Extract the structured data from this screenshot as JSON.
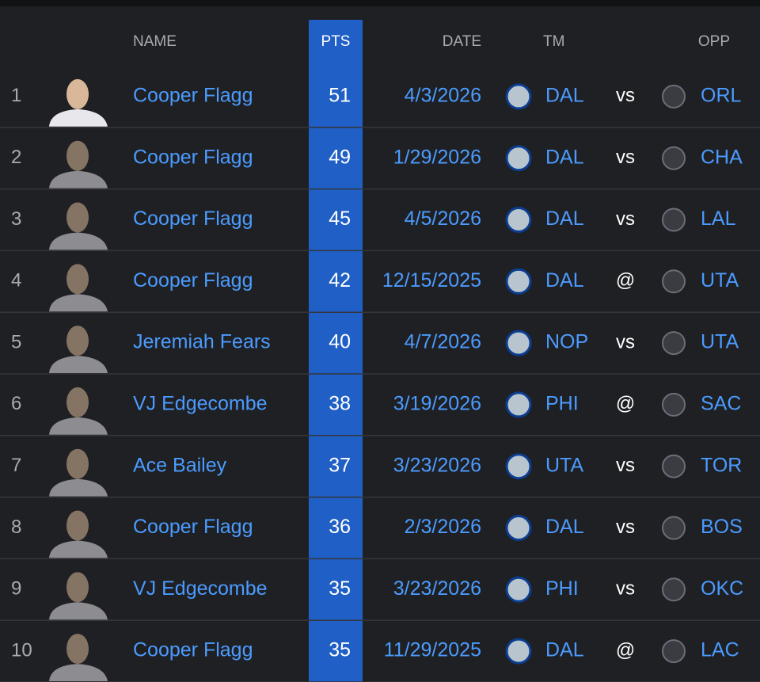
{
  "table": {
    "header": {
      "name": "NAME",
      "pts": "PTS",
      "date": "DATE",
      "team": "TM",
      "opp": "OPP"
    },
    "rows": [
      {
        "rank": 1,
        "name": "Cooper Flagg",
        "pts": 51,
        "date": "4/3/2026",
        "team": "DAL",
        "venue": "vs",
        "opp": "ORL"
      },
      {
        "rank": 2,
        "name": "Cooper Flagg",
        "pts": 49,
        "date": "1/29/2026",
        "team": "DAL",
        "venue": "vs",
        "opp": "CHA"
      },
      {
        "rank": 3,
        "name": "Cooper Flagg",
        "pts": 45,
        "date": "4/5/2026",
        "team": "DAL",
        "venue": "vs",
        "opp": "LAL"
      },
      {
        "rank": 4,
        "name": "Cooper Flagg",
        "pts": 42,
        "date": "12/15/2025",
        "team": "DAL",
        "venue": "@",
        "opp": "UTA"
      },
      {
        "rank": 5,
        "name": "Jeremiah Fears",
        "pts": 40,
        "date": "4/7/2026",
        "team": "NOP",
        "venue": "vs",
        "opp": "UTA"
      },
      {
        "rank": 6,
        "name": "VJ Edgecombe",
        "pts": 38,
        "date": "3/19/2026",
        "team": "PHI",
        "venue": "@",
        "opp": "SAC"
      },
      {
        "rank": 7,
        "name": "Ace Bailey",
        "pts": 37,
        "date": "3/23/2026",
        "team": "UTA",
        "venue": "vs",
        "opp": "TOR"
      },
      {
        "rank": 8,
        "name": "Cooper Flagg",
        "pts": 36,
        "date": "2/3/2026",
        "team": "DAL",
        "venue": "vs",
        "opp": "BOS"
      },
      {
        "rank": 9,
        "name": "VJ Edgecombe",
        "pts": 35,
        "date": "3/23/2026",
        "team": "PHI",
        "venue": "vs",
        "opp": "OKC"
      },
      {
        "rank": 10,
        "name": "Cooper Flagg",
        "pts": 35,
        "date": "11/29/2025",
        "team": "DAL",
        "venue": "@",
        "opp": "LAC"
      }
    ]
  }
}
